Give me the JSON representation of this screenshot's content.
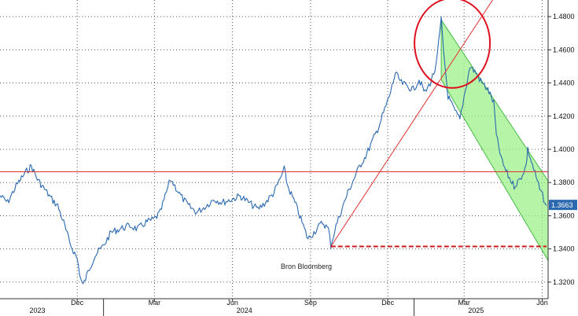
{
  "source_label": "Bron Bloomberg",
  "chart_data": {
    "type": "line",
    "title": "",
    "xlabel": "",
    "ylabel": "",
    "ylim": [
      1.31,
      1.49
    ],
    "y_ticks": [
      "1.3200",
      "1.3400",
      "1.3600",
      "1.3800",
      "1.4000",
      "1.4200",
      "1.4400",
      "1.4600",
      "1.4800"
    ],
    "x_ticks": [
      {
        "label": "Dec",
        "date": "2023-12-01"
      },
      {
        "label": "Mar",
        "date": "2024-03-01"
      },
      {
        "label": "Jun",
        "date": "2024-06-01"
      },
      {
        "label": "Sep",
        "date": "2024-09-01"
      },
      {
        "label": "Dec",
        "date": "2024-12-01"
      },
      {
        "label": "Mar",
        "date": "2025-03-01"
      },
      {
        "label": "Jun",
        "date": "2025-06-01"
      }
    ],
    "year_labels": [
      {
        "label": "2023",
        "date": "2023-10-15"
      },
      {
        "label": "2024",
        "date": "2024-06-15"
      },
      {
        "label": "2025",
        "date": "2025-03-15"
      }
    ],
    "x_range": [
      "2023-09-01",
      "2025-06-08"
    ],
    "last_value": "1.3663",
    "grid": true,
    "series": [
      {
        "color": "#2a68b0",
        "points": [
          [
            "2023-09-01",
            1.372
          ],
          [
            "2023-09-10",
            1.368
          ],
          [
            "2023-09-20",
            1.378
          ],
          [
            "2023-10-01",
            1.386
          ],
          [
            "2023-10-08",
            1.39
          ],
          [
            "2023-10-15",
            1.382
          ],
          [
            "2023-10-22",
            1.377
          ],
          [
            "2023-11-01",
            1.37
          ],
          [
            "2023-11-08",
            1.366
          ],
          [
            "2023-11-15",
            1.356
          ],
          [
            "2023-11-22",
            1.344
          ],
          [
            "2023-12-01",
            1.334
          ],
          [
            "2023-12-05",
            1.322
          ],
          [
            "2023-12-08",
            1.318
          ],
          [
            "2023-12-15",
            1.328
          ],
          [
            "2023-12-22",
            1.336
          ],
          [
            "2024-01-01",
            1.342
          ],
          [
            "2024-01-10",
            1.35
          ],
          [
            "2024-01-20",
            1.352
          ],
          [
            "2024-02-01",
            1.354
          ],
          [
            "2024-02-10",
            1.352
          ],
          [
            "2024-02-20",
            1.356
          ],
          [
            "2024-03-01",
            1.358
          ],
          [
            "2024-03-08",
            1.362
          ],
          [
            "2024-03-15",
            1.374
          ],
          [
            "2024-03-20",
            1.382
          ],
          [
            "2024-03-25",
            1.378
          ],
          [
            "2024-04-01",
            1.372
          ],
          [
            "2024-04-10",
            1.366
          ],
          [
            "2024-04-20",
            1.362
          ],
          [
            "2024-05-01",
            1.366
          ],
          [
            "2024-05-10",
            1.37
          ],
          [
            "2024-05-20",
            1.368
          ],
          [
            "2024-06-01",
            1.37
          ],
          [
            "2024-06-10",
            1.372
          ],
          [
            "2024-06-20",
            1.368
          ],
          [
            "2024-07-01",
            1.364
          ],
          [
            "2024-07-10",
            1.368
          ],
          [
            "2024-07-20",
            1.374
          ],
          [
            "2024-07-27",
            1.382
          ],
          [
            "2024-08-01",
            1.388
          ],
          [
            "2024-08-05",
            1.378
          ],
          [
            "2024-08-15",
            1.366
          ],
          [
            "2024-08-22",
            1.356
          ],
          [
            "2024-08-29",
            1.346
          ],
          [
            "2024-09-05",
            1.35
          ],
          [
            "2024-09-15",
            1.356
          ],
          [
            "2024-09-22",
            1.352
          ],
          [
            "2024-09-25",
            1.342
          ],
          [
            "2024-10-01",
            1.354
          ],
          [
            "2024-10-08",
            1.364
          ],
          [
            "2024-10-15",
            1.374
          ],
          [
            "2024-10-22",
            1.382
          ],
          [
            "2024-10-29",
            1.39
          ],
          [
            "2024-11-05",
            1.396
          ],
          [
            "2024-11-12",
            1.404
          ],
          [
            "2024-11-19",
            1.412
          ],
          [
            "2024-11-26",
            1.422
          ],
          [
            "2024-12-03",
            1.432
          ],
          [
            "2024-12-10",
            1.446
          ],
          [
            "2024-12-17",
            1.44
          ],
          [
            "2024-12-24",
            1.438
          ],
          [
            "2024-12-31",
            1.436
          ],
          [
            "2025-01-07",
            1.442
          ],
          [
            "2025-01-14",
            1.434
          ],
          [
            "2025-01-20",
            1.44
          ],
          [
            "2025-01-27",
            1.45
          ],
          [
            "2025-02-02",
            1.478
          ],
          [
            "2025-02-05",
            1.458
          ],
          [
            "2025-02-10",
            1.432
          ],
          [
            "2025-02-17",
            1.424
          ],
          [
            "2025-02-24",
            1.418
          ],
          [
            "2025-03-01",
            1.432
          ],
          [
            "2025-03-08",
            1.45
          ],
          [
            "2025-03-15",
            1.446
          ],
          [
            "2025-03-22",
            1.44
          ],
          [
            "2025-03-29",
            1.436
          ],
          [
            "2025-04-05",
            1.428
          ],
          [
            "2025-04-08",
            1.408
          ],
          [
            "2025-04-15",
            1.392
          ],
          [
            "2025-04-22",
            1.384
          ],
          [
            "2025-04-29",
            1.378
          ],
          [
            "2025-05-06",
            1.382
          ],
          [
            "2025-05-13",
            1.39
          ],
          [
            "2025-05-15",
            1.4
          ],
          [
            "2025-05-22",
            1.388
          ],
          [
            "2025-05-29",
            1.376
          ],
          [
            "2025-06-03",
            1.37
          ],
          [
            "2025-06-06",
            1.366
          ]
        ]
      }
    ],
    "annotations": {
      "horizontal_line": {
        "y": 1.3865,
        "color": "#e03030"
      },
      "rising_line": {
        "from": [
          "2024-09-25",
          1.3415
        ],
        "to": [
          "2025-04-10",
          1.495
        ],
        "color": "#e03030"
      },
      "dashed_support": {
        "from": [
          "2024-09-25",
          1.3415
        ],
        "to": [
          "2025-06-08",
          1.3415
        ],
        "color": "#cc1a1a"
      },
      "channel": {
        "upper": [
          [
            "2025-02-02",
            1.478
          ],
          [
            "2025-06-08",
            1.381
          ]
        ],
        "lower": [
          [
            "2025-02-02",
            1.442
          ],
          [
            "2025-06-08",
            1.333
          ]
        ],
        "fill": "#9ef08a",
        "stroke": "#44bb44"
      },
      "circle": {
        "center": [
          "2025-02-15",
          1.464
        ],
        "color": "#e01020"
      }
    }
  }
}
